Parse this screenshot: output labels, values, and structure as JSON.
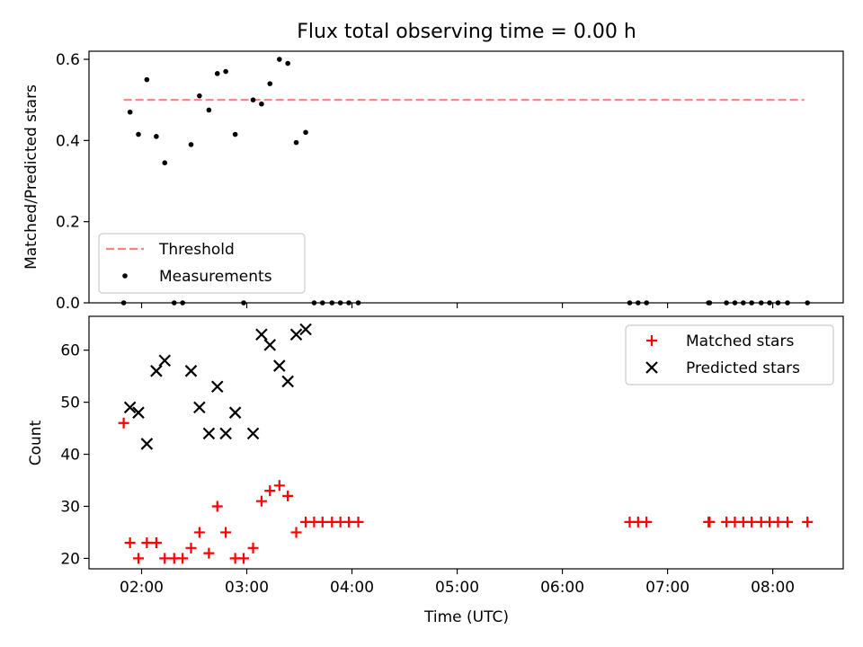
{
  "chart_data": [
    {
      "type": "scatter",
      "title": "Flux total observing time = 0.00 h",
      "xlabel": "",
      "ylabel": "Matched/Predicted stars",
      "xlim": [
        1.5,
        8.67
      ],
      "ylim": [
        0.0,
        0.62
      ],
      "yticks": [
        0.0,
        0.2,
        0.4,
        0.6
      ],
      "ytick_labels": [
        "0.0",
        "0.2",
        "0.4",
        "0.6"
      ],
      "legend_position": "lower-left",
      "threshold": {
        "name": "Threshold",
        "value": 0.5,
        "x_range": [
          1.83,
          8.3
        ],
        "color": "#ff8080",
        "style": "dashed"
      },
      "series": [
        {
          "name": "Measurements",
          "color": "#000000",
          "marker": "dot",
          "x": [
            1.83,
            1.89,
            1.97,
            2.05,
            2.14,
            2.22,
            2.31,
            2.39,
            2.47,
            2.55,
            2.64,
            2.72,
            2.8,
            2.89,
            2.97,
            3.06,
            3.14,
            3.22,
            3.31,
            3.39,
            3.47,
            3.56,
            3.64,
            3.72,
            3.81,
            3.89,
            3.97,
            4.06,
            6.64,
            6.72,
            6.8,
            7.39,
            7.4,
            7.56,
            7.64,
            7.72,
            7.8,
            7.89,
            7.97,
            8.05,
            8.14,
            8.33
          ],
          "y": [
            0.0,
            0.47,
            0.415,
            0.55,
            0.41,
            0.345,
            0.0,
            0.0,
            0.39,
            0.51,
            0.475,
            0.565,
            0.57,
            0.415,
            0.0,
            0.5,
            0.49,
            0.54,
            0.6,
            0.59,
            0.395,
            0.42,
            0.0,
            0.0,
            0.0,
            0.0,
            0.0,
            0.0,
            0.0,
            0.0,
            0.0,
            0.0,
            0.0,
            0.0,
            0.0,
            0.0,
            0.0,
            0.0,
            0.0,
            0.0,
            0.0,
            0.0
          ]
        }
      ]
    },
    {
      "type": "scatter",
      "title": "",
      "xlabel": "Time (UTC)",
      "ylabel": "Count",
      "xlim": [
        1.5,
        8.67
      ],
      "ylim": [
        18.0,
        66.5
      ],
      "yticks": [
        20,
        30,
        40,
        50,
        60
      ],
      "ytick_labels": [
        "20",
        "30",
        "40",
        "50",
        "60"
      ],
      "xticks": [
        2,
        3,
        4,
        5,
        6,
        7,
        8
      ],
      "xtick_labels": [
        "02:00",
        "03:00",
        "04:00",
        "05:00",
        "06:00",
        "07:00",
        "08:00"
      ],
      "legend_position": "upper-right",
      "series": [
        {
          "name": "Matched stars",
          "color": "#ff0000",
          "marker": "plus",
          "x": [
            1.83,
            1.89,
            1.97,
            2.05,
            2.14,
            2.22,
            2.31,
            2.39,
            2.47,
            2.55,
            2.64,
            2.72,
            2.8,
            2.89,
            2.97,
            3.06,
            3.14,
            3.22,
            3.31,
            3.39,
            3.47,
            3.56,
            3.64,
            3.72,
            3.81,
            3.89,
            3.97,
            4.06,
            6.64,
            6.72,
            6.8,
            7.39,
            7.4,
            7.56,
            7.64,
            7.72,
            7.8,
            7.89,
            7.97,
            8.05,
            8.14,
            8.33
          ],
          "y": [
            46,
            23,
            20,
            23,
            23,
            20,
            20,
            20,
            22,
            25,
            21,
            30,
            25,
            20,
            20,
            22,
            31,
            33,
            34,
            32,
            25,
            27,
            27,
            27,
            27,
            27,
            27,
            27,
            27,
            27,
            27,
            27,
            27,
            27,
            27,
            27,
            27,
            27,
            27,
            27,
            27,
            27
          ]
        },
        {
          "name": "Predicted stars",
          "color": "#000000",
          "marker": "x",
          "x": [
            1.89,
            1.97,
            2.05,
            2.14,
            2.22,
            2.47,
            2.55,
            2.64,
            2.72,
            2.8,
            2.89,
            3.06,
            3.14,
            3.22,
            3.31,
            3.39,
            3.47,
            3.56
          ],
          "y": [
            49,
            48,
            42,
            56,
            58,
            56,
            49,
            44,
            53,
            44,
            48,
            44,
            63,
            61,
            57,
            54,
            63,
            64
          ]
        }
      ]
    }
  ]
}
